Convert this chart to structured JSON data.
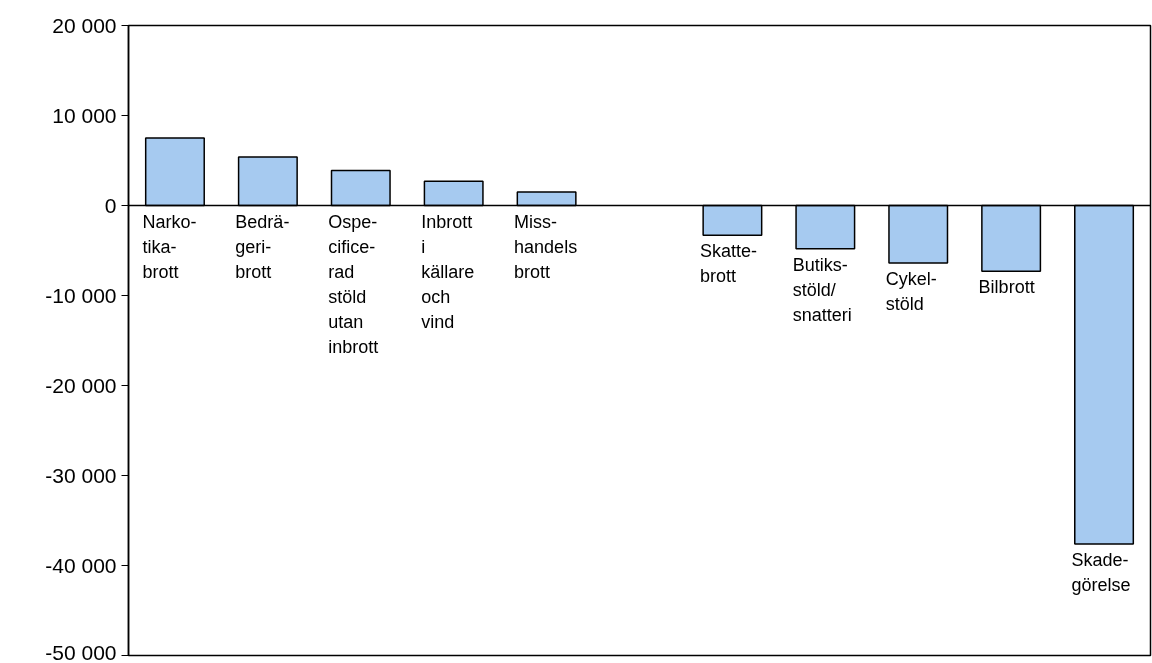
{
  "chart_data": {
    "type": "bar",
    "categories": [
      "Narko-\ntika-\nbrott",
      "Bedrä-\ngeri-\nbrott",
      "Ospe-\ncifice-\nrad\nstöld\nutan\ninbrott",
      "Inbrott\ni\nkällare\noch\nvind",
      "Miss-\nhandels\nbrott",
      null,
      "Skatte-\nbrott",
      "Butiks-\nstöld/\nsnatteri",
      "Cykel-\nstöld",
      "Bilbrott",
      "Skade-\ngörelse"
    ],
    "values": [
      7500,
      5400,
      3900,
      2700,
      1500,
      null,
      -3300,
      -4800,
      -6400,
      -7300,
      -37600
    ],
    "color": "#a6caf0",
    "ylim": [
      -50000,
      20000
    ],
    "yticks": [
      {
        "value": -50000,
        "label": "-50 000"
      },
      {
        "value": -40000,
        "label": "-40 000"
      },
      {
        "value": -30000,
        "label": "-30 000"
      },
      {
        "value": -20000,
        "label": "-20 000"
      },
      {
        "value": -10000,
        "label": "-10 000"
      },
      0,
      {
        "value": 10000,
        "label": "10 000"
      },
      {
        "value": 20000,
        "label": "20 000"
      }
    ],
    "grid": false
  }
}
